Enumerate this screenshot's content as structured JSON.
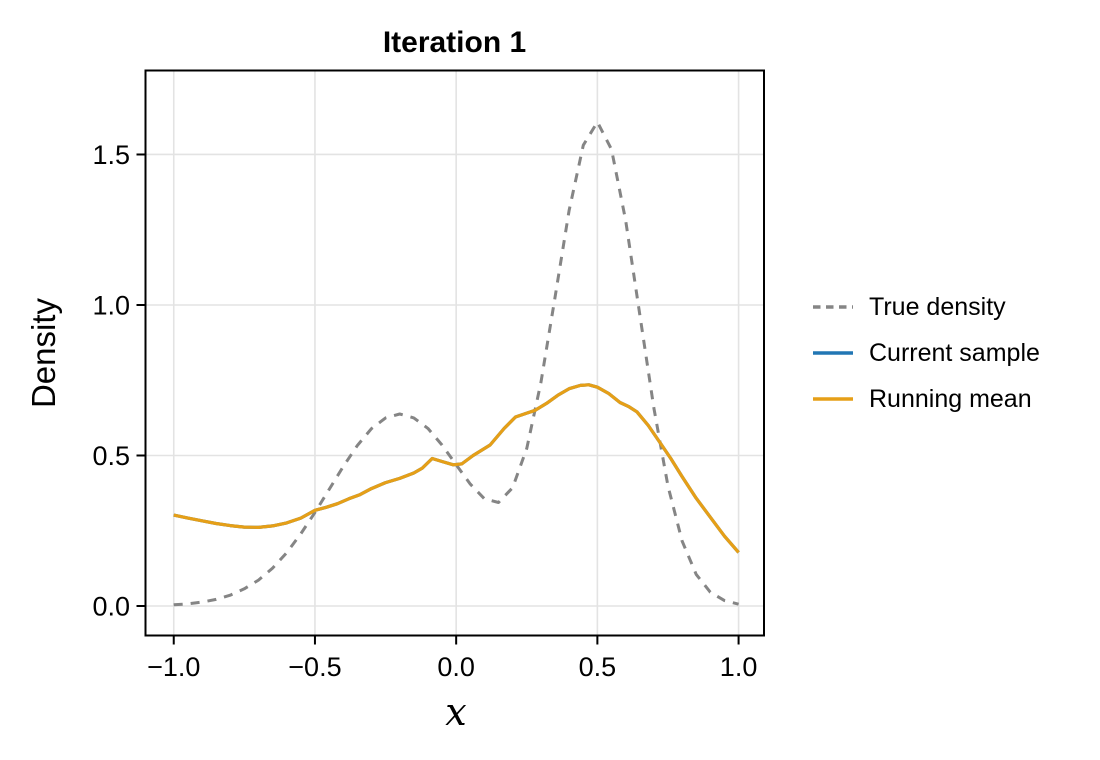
{
  "chart_data": {
    "type": "line",
    "title": "Iteration 1",
    "xlabel": "x",
    "ylabel": "Density",
    "xlim": [
      -1.1,
      1.09
    ],
    "ylim": [
      -0.098,
      1.779
    ],
    "grid": true,
    "legend_position": "right-outside",
    "xticks": {
      "values": [
        -1.0,
        -0.5,
        0.0,
        0.5,
        1.0
      ],
      "labels": [
        "−1.0",
        "−0.5",
        "0.0",
        "0.5",
        "1.0"
      ]
    },
    "yticks": {
      "values": [
        0.0,
        0.5,
        1.0,
        1.5
      ],
      "labels": [
        "0.0",
        "0.5",
        "1.0",
        "1.5"
      ]
    },
    "series": [
      {
        "name": "True density",
        "color": "#858585",
        "dash": [
          9,
          8
        ],
        "width": 3,
        "x": [
          -1.0,
          -0.95,
          -0.9,
          -0.85,
          -0.8,
          -0.75,
          -0.7,
          -0.65,
          -0.6,
          -0.55,
          -0.5,
          -0.45,
          -0.4,
          -0.35,
          -0.3,
          -0.25,
          -0.2,
          -0.15,
          -0.1,
          -0.05,
          0.0,
          0.05,
          0.1,
          0.15,
          0.2,
          0.25,
          0.3,
          0.35,
          0.4,
          0.45,
          0.5,
          0.55,
          0.6,
          0.65,
          0.7,
          0.75,
          0.8,
          0.85,
          0.9,
          0.95,
          1.0
        ],
        "y": [
          0.004,
          0.007,
          0.013,
          0.022,
          0.036,
          0.057,
          0.086,
          0.126,
          0.177,
          0.24,
          0.311,
          0.387,
          0.463,
          0.533,
          0.589,
          0.625,
          0.638,
          0.625,
          0.59,
          0.535,
          0.469,
          0.405,
          0.356,
          0.344,
          0.393,
          0.524,
          0.742,
          1.025,
          1.314,
          1.531,
          1.608,
          1.517,
          1.282,
          0.97,
          0.657,
          0.398,
          0.216,
          0.105,
          0.046,
          0.018,
          0.006
        ]
      },
      {
        "name": "Current sample",
        "color": "#2176b4",
        "dash": null,
        "width": 3.2,
        "x": [
          -1.0,
          -0.95,
          -0.9,
          -0.85,
          -0.8,
          -0.75,
          -0.7,
          -0.65,
          -0.6,
          -0.55,
          -0.5,
          -0.46,
          -0.42,
          -0.38,
          -0.34,
          -0.3,
          -0.25,
          -0.2,
          -0.15,
          -0.12,
          -0.085,
          -0.05,
          -0.01,
          0.02,
          0.06,
          0.12,
          0.17,
          0.21,
          0.25,
          0.28,
          0.32,
          0.36,
          0.4,
          0.44,
          0.47,
          0.5,
          0.54,
          0.58,
          0.61,
          0.64,
          0.68,
          0.72,
          0.76,
          0.8,
          0.85,
          0.9,
          0.95,
          1.0
        ],
        "y": [
          0.302,
          0.292,
          0.283,
          0.274,
          0.267,
          0.262,
          0.261,
          0.266,
          0.276,
          0.292,
          0.318,
          0.328,
          0.34,
          0.356,
          0.37,
          0.39,
          0.41,
          0.424,
          0.442,
          0.458,
          0.49,
          0.48,
          0.469,
          0.472,
          0.5,
          0.535,
          0.59,
          0.628,
          0.641,
          0.65,
          0.673,
          0.7,
          0.722,
          0.733,
          0.735,
          0.727,
          0.706,
          0.676,
          0.663,
          0.645,
          0.6,
          0.545,
          0.49,
          0.43,
          0.358,
          0.295,
          0.232,
          0.178
        ]
      },
      {
        "name": "Running mean",
        "color": "#e69f17",
        "dash": null,
        "width": 3.2,
        "x": [
          -1.0,
          -0.95,
          -0.9,
          -0.85,
          -0.8,
          -0.75,
          -0.7,
          -0.65,
          -0.6,
          -0.55,
          -0.5,
          -0.46,
          -0.42,
          -0.38,
          -0.34,
          -0.3,
          -0.25,
          -0.2,
          -0.15,
          -0.12,
          -0.085,
          -0.05,
          -0.01,
          0.02,
          0.06,
          0.12,
          0.17,
          0.21,
          0.25,
          0.28,
          0.32,
          0.36,
          0.4,
          0.44,
          0.47,
          0.5,
          0.54,
          0.58,
          0.61,
          0.64,
          0.68,
          0.72,
          0.76,
          0.8,
          0.85,
          0.9,
          0.95,
          1.0
        ],
        "y": [
          0.302,
          0.292,
          0.283,
          0.274,
          0.267,
          0.262,
          0.261,
          0.266,
          0.276,
          0.292,
          0.318,
          0.328,
          0.34,
          0.356,
          0.37,
          0.39,
          0.41,
          0.424,
          0.442,
          0.458,
          0.49,
          0.48,
          0.469,
          0.472,
          0.5,
          0.535,
          0.59,
          0.628,
          0.641,
          0.65,
          0.673,
          0.7,
          0.722,
          0.733,
          0.735,
          0.727,
          0.706,
          0.676,
          0.663,
          0.645,
          0.6,
          0.545,
          0.49,
          0.43,
          0.358,
          0.295,
          0.232,
          0.178
        ]
      }
    ]
  },
  "style_colors": {
    "frame": "#000000",
    "gridline": "#e3e3e3",
    "background": "#ffffff"
  }
}
